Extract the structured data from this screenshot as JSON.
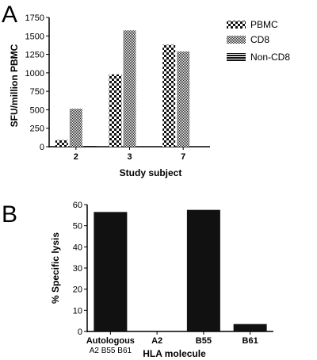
{
  "panels": [
    {
      "letter": "A"
    },
    {
      "letter": "B"
    }
  ],
  "chart_data": [
    {
      "type": "bar",
      "ylabel": "SFU/million PBMC",
      "xlabel": "Study subject",
      "categories": [
        "2",
        "3",
        "7"
      ],
      "ylim": [
        0,
        1750
      ],
      "yticks": [
        0,
        250,
        500,
        750,
        1000,
        1250,
        1500,
        1750
      ],
      "legend_position": "top-right",
      "series": [
        {
          "name": "PBMC",
          "values": [
            90,
            980,
            1380
          ],
          "pattern": "checker-large"
        },
        {
          "name": "CD8",
          "values": [
            515,
            1575,
            1290
          ],
          "pattern": "checker-fine"
        },
        {
          "name": "Non-CD8",
          "values": [
            10,
            0,
            0
          ],
          "pattern": "horizontal-stripes"
        }
      ]
    },
    {
      "type": "bar",
      "ylabel": "% Specific lysis",
      "xlabel": "HLA molecule",
      "categories": [
        "Autologous",
        "A2",
        "B55",
        "B61"
      ],
      "category_sublabels": [
        "A2 B55 B61",
        "",
        "",
        ""
      ],
      "ylim": [
        0,
        60
      ],
      "yticks": [
        0,
        10,
        20,
        30,
        40,
        50,
        60
      ],
      "values": [
        56.5,
        0,
        57.5,
        3.5
      ],
      "color": "#111111"
    }
  ]
}
